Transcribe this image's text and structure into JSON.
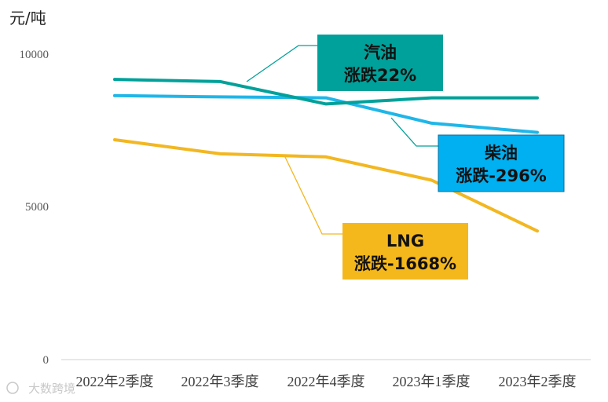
{
  "chart_data": {
    "type": "line",
    "unit_label": "元/吨",
    "categories": [
      "2022年2季度",
      "2022年3季度",
      "2022年4季度",
      "2023年1季度",
      "2023年2季度"
    ],
    "ylim": [
      0,
      10000
    ],
    "yticks": [
      0,
      5000,
      10000
    ],
    "grid": false,
    "series": [
      {
        "name": "汽油",
        "color": "#00a19a",
        "values": [
          9150,
          9080,
          8350,
          8550,
          8550
        ],
        "callout": {
          "title": "汽油",
          "change": "涨跌22%",
          "bg": "#00a19a"
        }
      },
      {
        "name": "柴油",
        "color": "#1fb6e8",
        "values": [
          8620,
          8580,
          8550,
          7720,
          7420
        ],
        "callout": {
          "title": "柴油",
          "change": "涨跌-296%",
          "bg": "#00b0f0"
        }
      },
      {
        "name": "LNG",
        "color": "#f2b721",
        "values": [
          7180,
          6720,
          6620,
          5860,
          4200
        ],
        "callout": {
          "title": "LNG",
          "change": "涨跌-1668%",
          "bg": "#f5b81c"
        }
      }
    ]
  },
  "watermark": "大数跨境"
}
